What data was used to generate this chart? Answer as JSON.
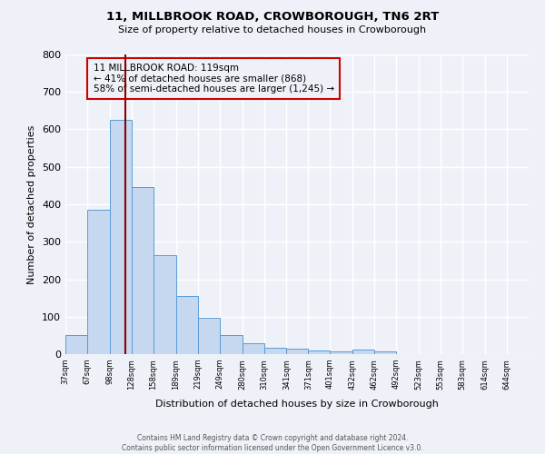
{
  "title": "11, MILLBROOK ROAD, CROWBOROUGH, TN6 2RT",
  "subtitle": "Size of property relative to detached houses in Crowborough",
  "bar_values": [
    50,
    385,
    625,
    445,
    265,
    155,
    97,
    52,
    30,
    17,
    15,
    9,
    8,
    12,
    8,
    0,
    0,
    0,
    0,
    0,
    0
  ],
  "bar_labels": [
    "37sqm",
    "67sqm",
    "98sqm",
    "128sqm",
    "158sqm",
    "189sqm",
    "219sqm",
    "249sqm",
    "280sqm",
    "310sqm",
    "341sqm",
    "371sqm",
    "401sqm",
    "432sqm",
    "462sqm",
    "492sqm",
    "523sqm",
    "553sqm",
    "583sqm",
    "614sqm",
    "644sqm"
  ],
  "bar_color": "#c5d8f0",
  "bar_edge_color": "#5b9bd5",
  "ylabel": "Number of detached properties",
  "xlabel": "Distribution of detached houses by size in Crowborough",
  "ylim": [
    0,
    800
  ],
  "yticks": [
    0,
    100,
    200,
    300,
    400,
    500,
    600,
    700,
    800
  ],
  "vline_x": 119,
  "vline_color": "#8b0000",
  "annotation_title": "11 MILLBROOK ROAD: 119sqm",
  "annotation_line1": "← 41% of detached houses are smaller (868)",
  "annotation_line2": "58% of semi-detached houses are larger (1,245) →",
  "annotation_box_color": "#cc0000",
  "footer_line1": "Contains HM Land Registry data © Crown copyright and database right 2024.",
  "footer_line2": "Contains public sector information licensed under the Open Government Licence v3.0.",
  "background_color": "#eef2f8",
  "grid_color": "#ffffff",
  "bin_edges": [
    37,
    67,
    98,
    128,
    158,
    189,
    219,
    249,
    280,
    310,
    341,
    371,
    401,
    432,
    462,
    492,
    523,
    553,
    583,
    614,
    644,
    674
  ]
}
